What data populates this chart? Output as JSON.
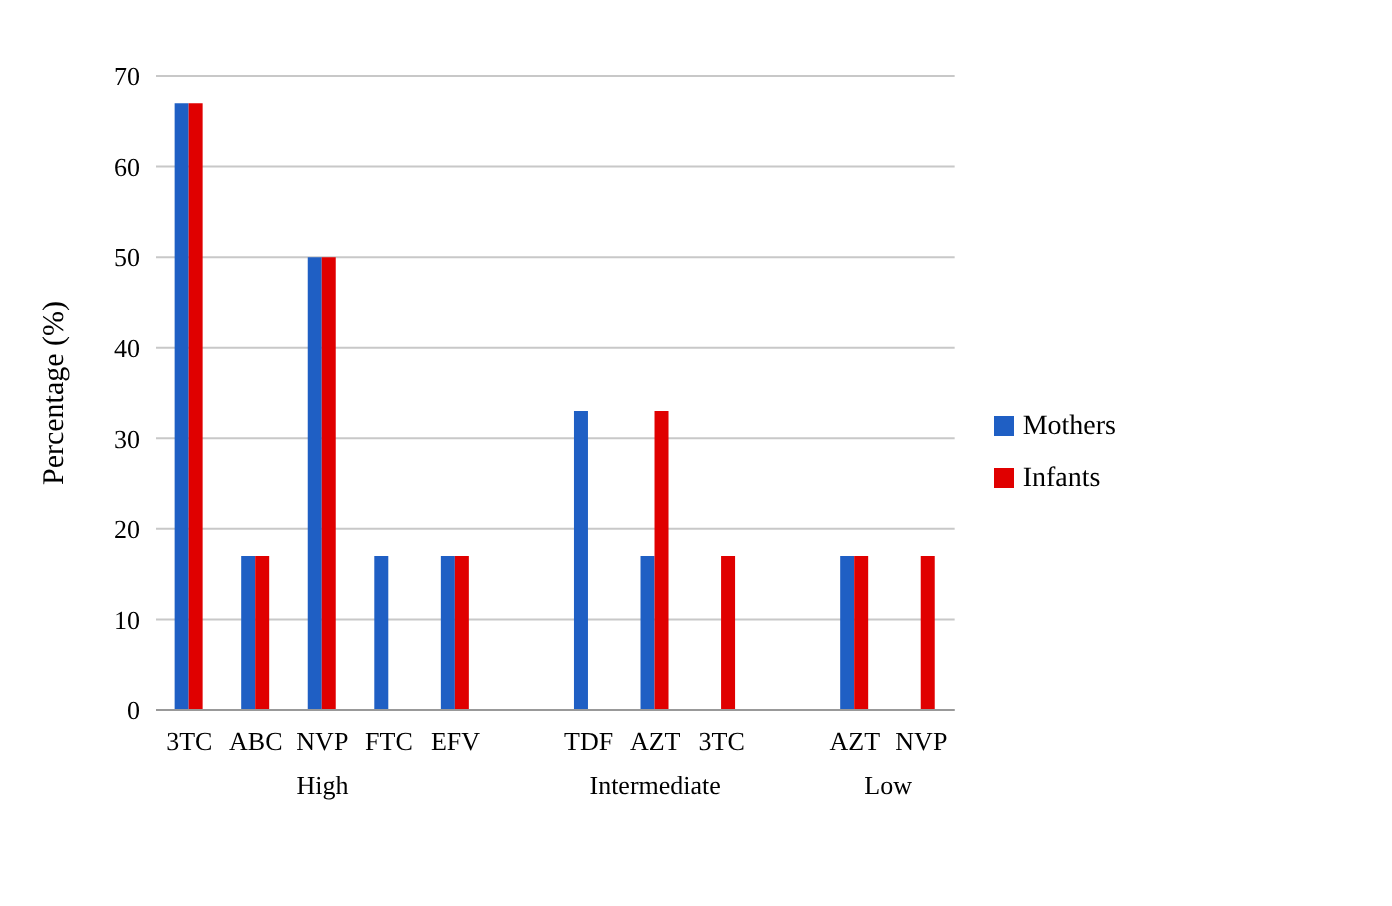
{
  "chart_data": {
    "type": "bar",
    "ylabel": "Percentage (%)",
    "categories": [
      "3TC",
      "ABC",
      "NVP",
      "FTC",
      "EFV",
      null,
      "TDF",
      "AZT",
      "3TC",
      null,
      "AZT",
      "NVP"
    ],
    "series": [
      {
        "name": "Mothers",
        "color": "#1f5fc4",
        "values": [
          67,
          17,
          50,
          17,
          17,
          null,
          33,
          17,
          0,
          null,
          17,
          0
        ]
      },
      {
        "name": "Infants",
        "color": "#e00000",
        "values": [
          67,
          17,
          50,
          0,
          17,
          null,
          0,
          33,
          17,
          null,
          17,
          17
        ]
      }
    ],
    "annotations": [
      "High",
      "Intermediate",
      "Low"
    ],
    "ylim": [
      0,
      70
    ],
    "yticks": [
      0,
      10,
      20,
      30,
      40,
      50,
      60,
      70
    ],
    "grid": "y",
    "legend": "right"
  }
}
